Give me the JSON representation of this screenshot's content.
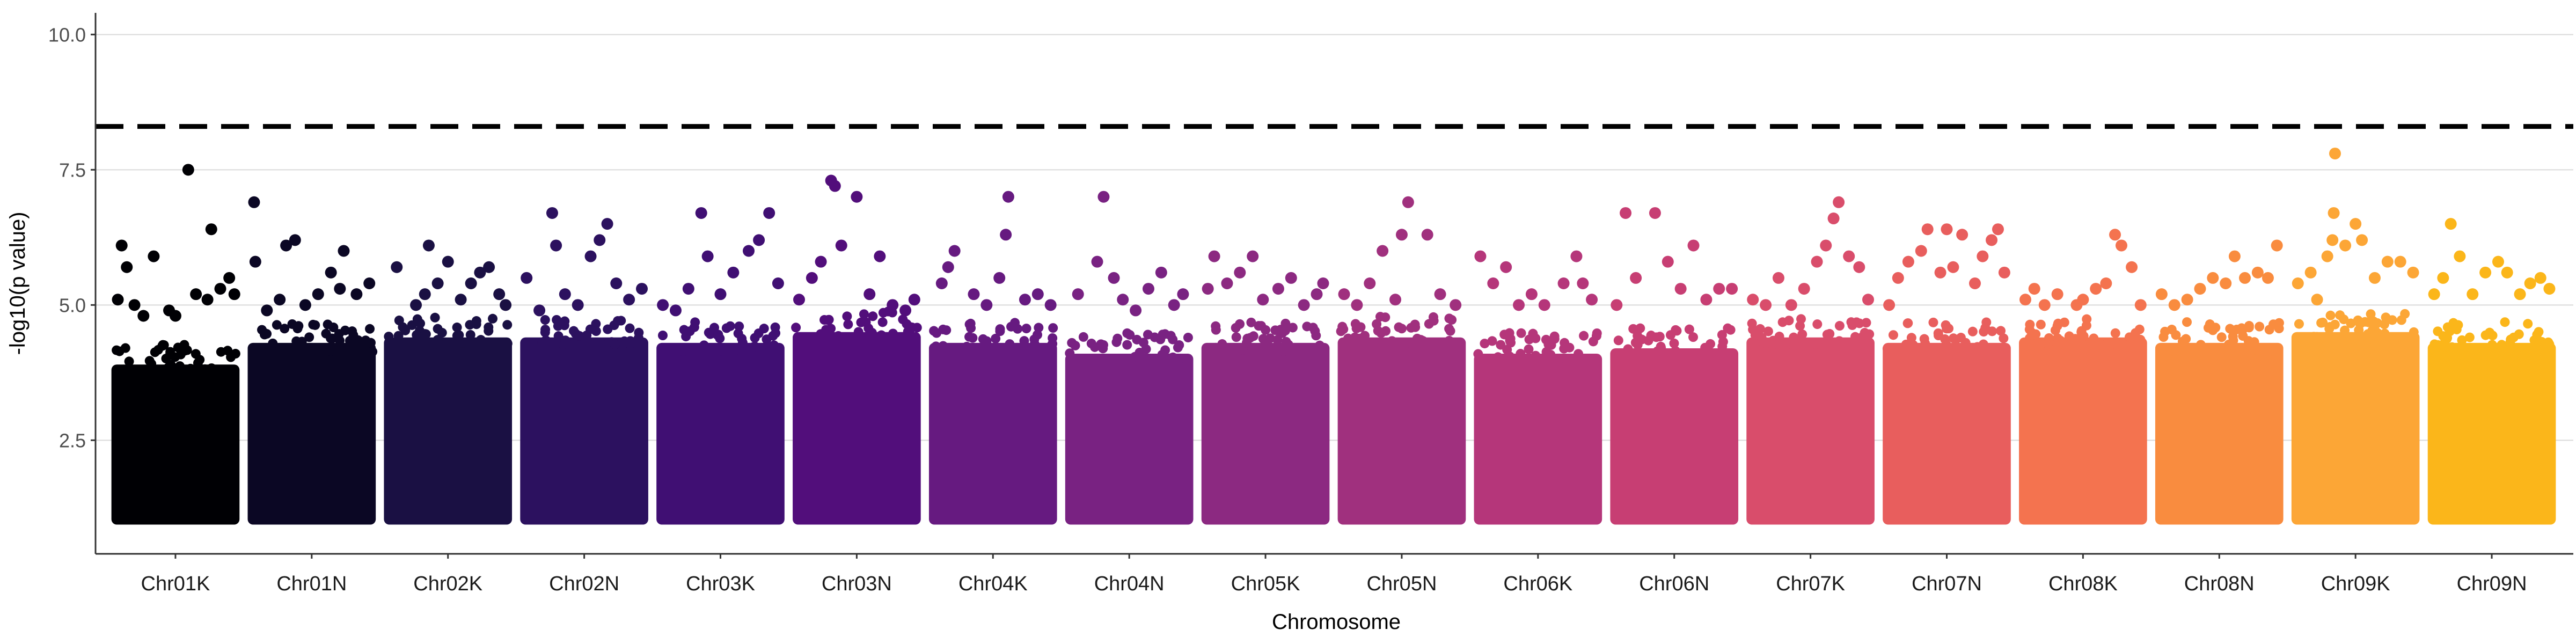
{
  "chart_data": {
    "type": "scatter",
    "title": "",
    "xlabel": "Chromosome",
    "ylabel": "-log10(p value)",
    "ylim": [
      0.4,
      10.4
    ],
    "yticks": [
      "2.5",
      "5.0",
      "7.5",
      "10.0"
    ],
    "y_tick_values": [
      2.5,
      5.0,
      7.5,
      10.0
    ],
    "threshold": 8.3,
    "threshold_style": "dashed",
    "grid": "horizontal",
    "legend": "none",
    "categories": [
      "Chr01K",
      "Chr01N",
      "Chr02K",
      "Chr02N",
      "Chr03K",
      "Chr03N",
      "Chr04K",
      "Chr04N",
      "Chr05K",
      "Chr05N",
      "Chr06K",
      "Chr06N",
      "Chr07K",
      "Chr07N",
      "Chr08K",
      "Chr08N",
      "Chr09K",
      "Chr09N"
    ],
    "colors": [
      "#000004",
      "#0b0724",
      "#1a1043",
      "#2c115f",
      "#400f73",
      "#520e7b",
      "#661a80",
      "#792282",
      "#8c2981",
      "#a0307e",
      "#b5367a",
      "#c73e73",
      "#d94d6b",
      "#e85e5d",
      "#f4734f",
      "#f98c3f",
      "#fca636",
      "#fbb61a"
    ],
    "point_floor": 1.0,
    "bulk_top": [
      3.9,
      4.3,
      4.4,
      4.4,
      4.3,
      4.5,
      4.3,
      4.1,
      4.3,
      4.4,
      4.1,
      4.2,
      4.4,
      4.3,
      4.4,
      4.3,
      4.5,
      4.3
    ],
    "series": [
      {
        "name": "Chr01K",
        "points": [
          [
            0.05,
            5.1
          ],
          [
            0.08,
            6.1
          ],
          [
            0.12,
            5.7
          ],
          [
            0.18,
            5.0
          ],
          [
            0.25,
            4.8
          ],
          [
            0.33,
            5.9
          ],
          [
            0.45,
            4.9
          ],
          [
            0.5,
            4.8
          ],
          [
            0.6,
            7.5
          ],
          [
            0.66,
            5.2
          ],
          [
            0.75,
            5.1
          ],
          [
            0.78,
            6.4
          ],
          [
            0.85,
            5.3
          ],
          [
            0.92,
            5.5
          ],
          [
            0.96,
            5.2
          ]
        ]
      },
      {
        "name": "Chr01N",
        "points": [
          [
            0.05,
            6.9
          ],
          [
            0.06,
            5.8
          ],
          [
            0.15,
            4.9
          ],
          [
            0.25,
            5.1
          ],
          [
            0.3,
            6.1
          ],
          [
            0.37,
            6.2
          ],
          [
            0.45,
            5.0
          ],
          [
            0.55,
            5.2
          ],
          [
            0.65,
            5.6
          ],
          [
            0.72,
            5.3
          ],
          [
            0.75,
            6.0
          ],
          [
            0.85,
            5.2
          ],
          [
            0.95,
            5.4
          ]
        ]
      },
      {
        "name": "Chr02K",
        "points": [
          [
            0.1,
            5.7
          ],
          [
            0.25,
            5.0
          ],
          [
            0.32,
            5.2
          ],
          [
            0.35,
            6.1
          ],
          [
            0.42,
            5.4
          ],
          [
            0.5,
            5.8
          ],
          [
            0.6,
            5.1
          ],
          [
            0.68,
            5.4
          ],
          [
            0.75,
            5.6
          ],
          [
            0.82,
            5.7
          ],
          [
            0.9,
            5.2
          ],
          [
            0.95,
            5.0
          ]
        ]
      },
      {
        "name": "Chr02N",
        "points": [
          [
            0.05,
            5.5
          ],
          [
            0.15,
            4.9
          ],
          [
            0.25,
            6.7
          ],
          [
            0.28,
            6.1
          ],
          [
            0.35,
            5.2
          ],
          [
            0.45,
            5.0
          ],
          [
            0.55,
            5.9
          ],
          [
            0.62,
            6.2
          ],
          [
            0.68,
            6.5
          ],
          [
            0.75,
            5.4
          ],
          [
            0.85,
            5.1
          ],
          [
            0.95,
            5.3
          ]
        ]
      },
      {
        "name": "Chr03K",
        "points": [
          [
            0.05,
            5.0
          ],
          [
            0.15,
            4.9
          ],
          [
            0.25,
            5.3
          ],
          [
            0.35,
            6.7
          ],
          [
            0.4,
            5.9
          ],
          [
            0.5,
            5.2
          ],
          [
            0.6,
            5.6
          ],
          [
            0.72,
            6.0
          ],
          [
            0.8,
            6.2
          ],
          [
            0.88,
            6.7
          ],
          [
            0.95,
            5.4
          ]
        ]
      },
      {
        "name": "Chr03N",
        "points": [
          [
            0.05,
            5.1
          ],
          [
            0.15,
            5.5
          ],
          [
            0.22,
            5.8
          ],
          [
            0.3,
            7.3
          ],
          [
            0.33,
            7.2
          ],
          [
            0.38,
            6.1
          ],
          [
            0.5,
            7.0
          ],
          [
            0.6,
            5.2
          ],
          [
            0.68,
            5.9
          ],
          [
            0.78,
            5.0
          ],
          [
            0.88,
            4.9
          ],
          [
            0.95,
            5.1
          ]
        ]
      },
      {
        "name": "Chr04K",
        "points": [
          [
            0.1,
            5.4
          ],
          [
            0.15,
            5.7
          ],
          [
            0.2,
            6.0
          ],
          [
            0.35,
            5.2
          ],
          [
            0.45,
            5.0
          ],
          [
            0.55,
            5.5
          ],
          [
            0.6,
            6.3
          ],
          [
            0.62,
            7.0
          ],
          [
            0.75,
            5.1
          ],
          [
            0.85,
            5.2
          ],
          [
            0.95,
            5.0
          ]
        ]
      },
      {
        "name": "Chr04N",
        "points": [
          [
            0.1,
            5.2
          ],
          [
            0.25,
            5.8
          ],
          [
            0.3,
            7.0
          ],
          [
            0.38,
            5.5
          ],
          [
            0.45,
            5.1
          ],
          [
            0.55,
            4.9
          ],
          [
            0.65,
            5.3
          ],
          [
            0.75,
            5.6
          ],
          [
            0.85,
            5.0
          ],
          [
            0.92,
            5.2
          ]
        ]
      },
      {
        "name": "Chr05K",
        "points": [
          [
            0.05,
            5.3
          ],
          [
            0.1,
            5.9
          ],
          [
            0.2,
            5.4
          ],
          [
            0.3,
            5.6
          ],
          [
            0.4,
            5.9
          ],
          [
            0.48,
            5.1
          ],
          [
            0.6,
            5.3
          ],
          [
            0.7,
            5.5
          ],
          [
            0.8,
            5.0
          ],
          [
            0.9,
            5.2
          ],
          [
            0.95,
            5.4
          ]
        ]
      },
      {
        "name": "Chr05N",
        "points": [
          [
            0.05,
            5.2
          ],
          [
            0.15,
            5.0
          ],
          [
            0.25,
            5.4
          ],
          [
            0.35,
            6.0
          ],
          [
            0.45,
            5.1
          ],
          [
            0.5,
            6.3
          ],
          [
            0.55,
            6.9
          ],
          [
            0.7,
            6.3
          ],
          [
            0.8,
            5.2
          ],
          [
            0.92,
            5.0
          ]
        ]
      },
      {
        "name": "Chr06K",
        "points": [
          [
            0.05,
            5.9
          ],
          [
            0.15,
            5.4
          ],
          [
            0.25,
            5.7
          ],
          [
            0.35,
            5.0
          ],
          [
            0.45,
            5.2
          ],
          [
            0.55,
            5.0
          ],
          [
            0.7,
            5.4
          ],
          [
            0.8,
            5.9
          ],
          [
            0.85,
            5.4
          ],
          [
            0.92,
            5.1
          ]
        ]
      },
      {
        "name": "Chr06N",
        "points": [
          [
            0.05,
            5.0
          ],
          [
            0.12,
            6.7
          ],
          [
            0.2,
            5.5
          ],
          [
            0.35,
            6.7
          ],
          [
            0.45,
            5.8
          ],
          [
            0.55,
            5.3
          ],
          [
            0.65,
            6.1
          ],
          [
            0.75,
            5.1
          ],
          [
            0.85,
            5.3
          ],
          [
            0.95,
            5.3
          ]
        ]
      },
      {
        "name": "Chr07K",
        "points": [
          [
            0.05,
            5.1
          ],
          [
            0.15,
            5.0
          ],
          [
            0.25,
            5.5
          ],
          [
            0.35,
            5.0
          ],
          [
            0.45,
            5.3
          ],
          [
            0.55,
            5.8
          ],
          [
            0.62,
            6.1
          ],
          [
            0.68,
            6.6
          ],
          [
            0.72,
            6.9
          ],
          [
            0.8,
            5.9
          ],
          [
            0.88,
            5.7
          ],
          [
            0.95,
            5.1
          ]
        ]
      },
      {
        "name": "Chr07N",
        "points": [
          [
            0.05,
            5.0
          ],
          [
            0.12,
            5.5
          ],
          [
            0.2,
            5.8
          ],
          [
            0.3,
            6.0
          ],
          [
            0.35,
            6.4
          ],
          [
            0.45,
            5.6
          ],
          [
            0.5,
            6.4
          ],
          [
            0.55,
            5.7
          ],
          [
            0.62,
            6.3
          ],
          [
            0.72,
            5.4
          ],
          [
            0.78,
            5.9
          ],
          [
            0.85,
            6.2
          ],
          [
            0.9,
            6.4
          ],
          [
            0.95,
            5.6
          ]
        ]
      },
      {
        "name": "Chr08K",
        "points": [
          [
            0.05,
            5.1
          ],
          [
            0.12,
            5.3
          ],
          [
            0.2,
            5.0
          ],
          [
            0.3,
            5.2
          ],
          [
            0.45,
            5.0
          ],
          [
            0.5,
            5.1
          ],
          [
            0.6,
            5.3
          ],
          [
            0.68,
            5.4
          ],
          [
            0.75,
            6.3
          ],
          [
            0.8,
            6.1
          ],
          [
            0.88,
            5.7
          ],
          [
            0.95,
            5.0
          ]
        ]
      },
      {
        "name": "Chr08N",
        "points": [
          [
            0.05,
            5.2
          ],
          [
            0.15,
            5.0
          ],
          [
            0.25,
            5.1
          ],
          [
            0.35,
            5.3
          ],
          [
            0.45,
            5.5
          ],
          [
            0.55,
            5.4
          ],
          [
            0.62,
            5.9
          ],
          [
            0.7,
            5.5
          ],
          [
            0.8,
            5.6
          ],
          [
            0.88,
            5.5
          ],
          [
            0.95,
            6.1
          ]
        ]
      },
      {
        "name": "Chr09K",
        "points": [
          [
            0.05,
            5.4
          ],
          [
            0.15,
            5.6
          ],
          [
            0.2,
            5.1
          ],
          [
            0.28,
            5.9
          ],
          [
            0.32,
            6.2
          ],
          [
            0.33,
            6.7
          ],
          [
            0.34,
            7.8
          ],
          [
            0.42,
            6.1
          ],
          [
            0.5,
            6.5
          ],
          [
            0.55,
            6.2
          ],
          [
            0.65,
            5.5
          ],
          [
            0.75,
            5.8
          ],
          [
            0.85,
            5.8
          ],
          [
            0.95,
            5.6
          ]
        ]
      },
      {
        "name": "Chr09N",
        "points": [
          [
            0.05,
            5.2
          ],
          [
            0.12,
            5.5
          ],
          [
            0.18,
            6.5
          ],
          [
            0.25,
            5.9
          ],
          [
            0.35,
            5.2
          ],
          [
            0.45,
            5.6
          ],
          [
            0.55,
            5.8
          ],
          [
            0.62,
            5.6
          ],
          [
            0.72,
            5.2
          ],
          [
            0.8,
            5.4
          ],
          [
            0.88,
            5.5
          ],
          [
            0.95,
            5.3
          ]
        ]
      }
    ]
  }
}
